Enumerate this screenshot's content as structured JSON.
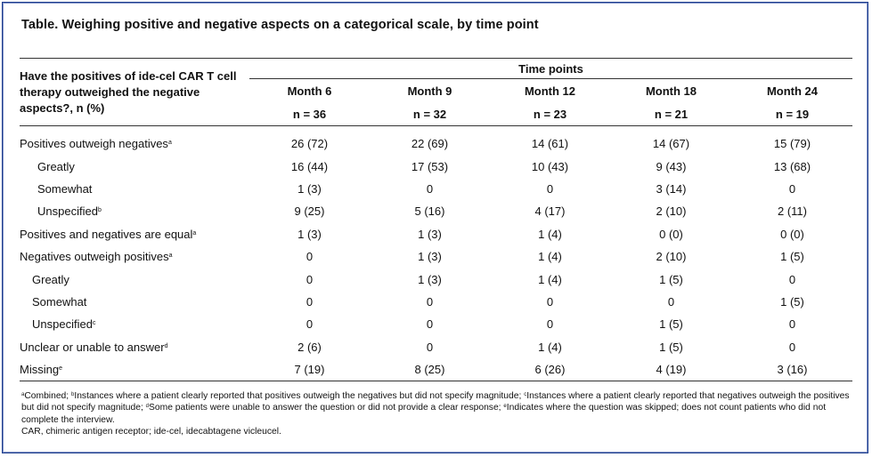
{
  "title": "Table. Weighing positive and negative aspects on a categorical scale, by time point",
  "question": "Have the positives of ide-cel CAR T cell therapy outweighed the negative aspects?, n (%)",
  "time_points_label": "Time points",
  "columns": [
    {
      "label": "Month 6",
      "n": "n = 36"
    },
    {
      "label": "Month 9",
      "n": "n = 32"
    },
    {
      "label": "Month 12",
      "n": "n = 23"
    },
    {
      "label": "Month 18",
      "n": "n = 21"
    },
    {
      "label": "Month 24",
      "n": "n = 19"
    }
  ],
  "rows": [
    {
      "label": "Positives outweigh negatives",
      "sup": "a",
      "indent": 0,
      "values": [
        "26 (72)",
        "22 (69)",
        "14 (61)",
        "14 (67)",
        "15 (79)"
      ]
    },
    {
      "label": "Greatly",
      "sup": "",
      "indent": 1,
      "values": [
        "16 (44)",
        "17 (53)",
        "10 (43)",
        "9 (43)",
        "13 (68)"
      ]
    },
    {
      "label": "Somewhat",
      "sup": "",
      "indent": 1,
      "values": [
        "1 (3)",
        "0",
        "0",
        "3 (14)",
        "0"
      ]
    },
    {
      "label": "Unspecified",
      "sup": "b",
      "indent": 1,
      "values": [
        "9 (25)",
        "5 (16)",
        "4 (17)",
        "2 (10)",
        "2 (11)"
      ]
    },
    {
      "label": "Positives and negatives are equal",
      "sup": "a",
      "indent": 0,
      "values": [
        "1 (3)",
        "1 (3)",
        "1 (4)",
        "0 (0)",
        "0 (0)"
      ]
    },
    {
      "label": "Negatives outweigh positives",
      "sup": "a",
      "indent": 0,
      "values": [
        "0",
        "1 (3)",
        "1 (4)",
        "2 (10)",
        "1 (5)"
      ]
    },
    {
      "label": "Greatly",
      "sup": "",
      "indent": 2,
      "values": [
        "0",
        "1 (3)",
        "1 (4)",
        "1 (5)",
        "0"
      ]
    },
    {
      "label": "Somewhat",
      "sup": "",
      "indent": 2,
      "values": [
        "0",
        "0",
        "0",
        "0",
        "1 (5)"
      ]
    },
    {
      "label": "Unspecified",
      "sup": "c",
      "indent": 2,
      "values": [
        "0",
        "0",
        "0",
        "1 (5)",
        "0"
      ]
    },
    {
      "label": "Unclear or unable to answer",
      "sup": "d",
      "indent": 0,
      "values": [
        "2 (6)",
        "0",
        "1 (4)",
        "1 (5)",
        "0"
      ]
    },
    {
      "label": "Missing",
      "sup": "e",
      "indent": 0,
      "values": [
        "7 (19)",
        "8 (25)",
        "6 (26)",
        "4 (19)",
        "3 (16)"
      ]
    }
  ],
  "footnotes": [
    {
      "sup": "a",
      "text": "Combined; "
    },
    {
      "sup": "b",
      "text": "Instances where a patient clearly reported that positives outweigh the negatives but did not specify magnitude; "
    },
    {
      "sup": "c",
      "text": "Instances where a patient clearly reported that negatives outweigh the positives but did not specify magnitude; "
    },
    {
      "sup": "d",
      "text": "Some patients were unable to answer the question or did not provide a clear response; "
    },
    {
      "sup": "e",
      "text": "Indicates where the question was skipped; does not count patients who did not complete the interview."
    }
  ],
  "abbreviations": "CAR, chimeric antigen receptor; ide-cel, idecabtagene vicleucel."
}
